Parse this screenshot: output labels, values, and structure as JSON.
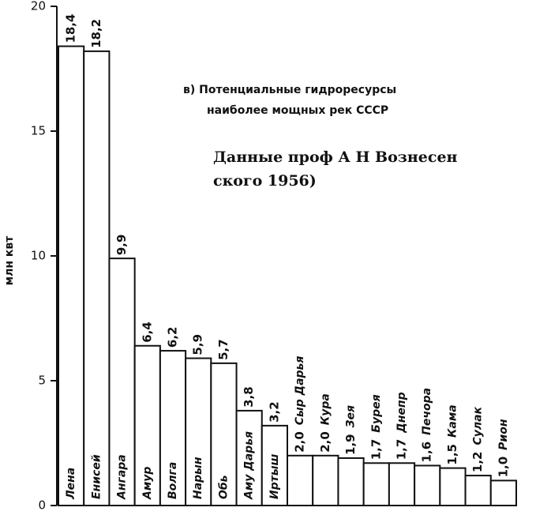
{
  "chart_data": {
    "type": "bar",
    "title": [
      "в) Потенциальные гидроресурсы",
      "наиболее мощных рек СССР"
    ],
    "subtitle": [
      "Данные проф А Н Вознесен",
      "ского 1956)"
    ],
    "y_label": "млн квт",
    "categories": [
      "Лена",
      "Енисей",
      "Ангара",
      "Амур",
      "Волга",
      "Нарын",
      "Обь",
      "Аму Дарья",
      "Иртыш",
      "Сыр Дарья",
      "Кура",
      "Зея",
      "Бурея",
      "Днепр",
      "Печора",
      "Кама",
      "Сулак",
      "Рион"
    ],
    "values": [
      18.4,
      18.2,
      9.9,
      6.4,
      6.2,
      5.9,
      5.7,
      3.8,
      3.2,
      2.0,
      2.0,
      1.9,
      1.7,
      1.7,
      1.6,
      1.5,
      1.2,
      1.0
    ],
    "value_labels": [
      "18,4",
      "18,2",
      "9,9",
      "6,4",
      "6,2",
      "5,9",
      "5,7",
      "3,8",
      "3,2",
      "2,0",
      "2,0",
      "1,9",
      "1,7",
      "1,7",
      "1,6",
      "1,5",
      "1,2",
      "1,0"
    ],
    "color": "#ffffff",
    "ylim": [
      0,
      20
    ],
    "yticks": [
      0,
      5,
      10,
      15,
      20
    ]
  }
}
